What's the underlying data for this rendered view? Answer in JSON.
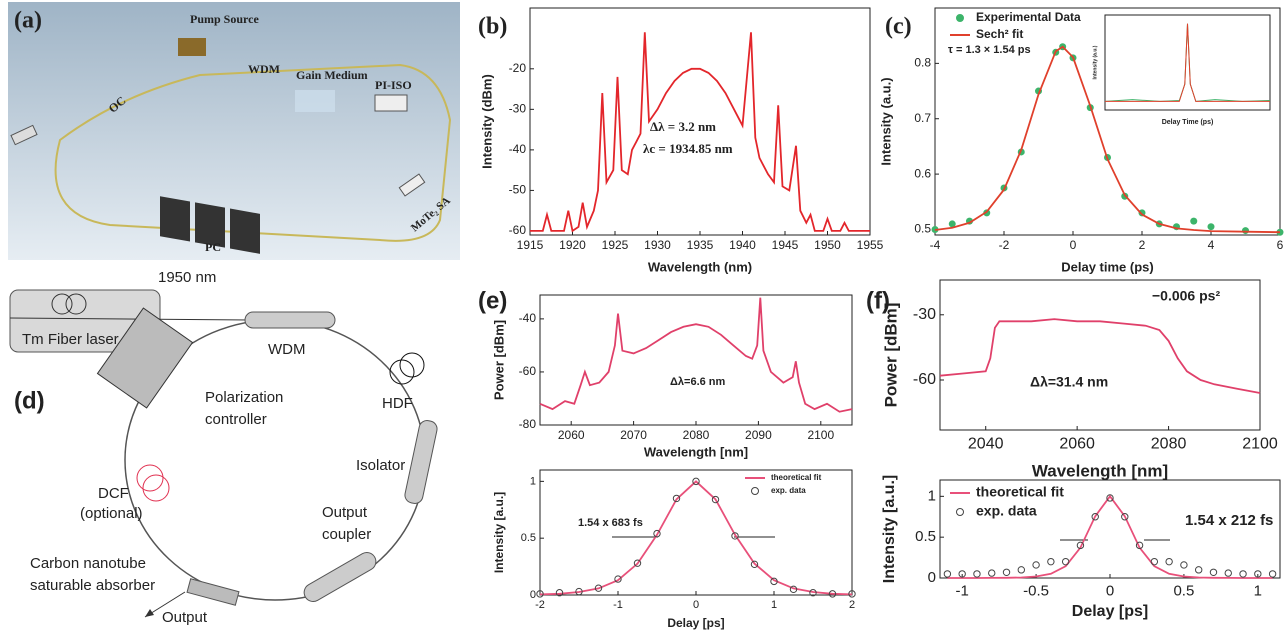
{
  "diagrams": {
    "a": {
      "label": "(a)",
      "pump": "Pump Source",
      "wdm": "WDM",
      "gain": "Gain Medium",
      "iso": "PI-ISO",
      "oc": "OC",
      "pc": "PC",
      "sa": "MoTe₂ SA"
    },
    "d": {
      "label": "(d)",
      "wavelength": "1950 nm",
      "laser": "Tm Fiber laser",
      "wdm": "WDM",
      "hdf": "HDF",
      "pol": [
        "Polarization",
        "controller"
      ],
      "isolator": "Isolator",
      "dcf": [
        "DCF",
        "(optional)"
      ],
      "coupler": [
        "Output",
        "coupler"
      ],
      "sa": [
        "Carbon nanotube",
        "saturable absorber"
      ],
      "output": "Output"
    }
  },
  "chart_data": [
    {
      "type": "line",
      "panel_label": "(b)",
      "x_label": "Wavelength (nm)",
      "y_label": "Intensity (dBm)",
      "x": [
        1915,
        1916.5,
        1917,
        1917.5,
        1919,
        1919.5,
        1920,
        1920.7,
        1921.2,
        1921.7,
        1922.5,
        1923,
        1923.5,
        1924,
        1924.8,
        1925.3,
        1925.8,
        1926.5,
        1927,
        1927.5,
        1928,
        1928.5,
        1929,
        1930,
        1931,
        1932,
        1933,
        1934,
        1935,
        1936,
        1937,
        1938,
        1939,
        1940,
        1941,
        1941.5,
        1942,
        1943,
        1943.7,
        1944.2,
        1944.7,
        1945.5,
        1946.3,
        1946.8,
        1947.5,
        1948,
        1948.5,
        1949.5,
        1950,
        1950.5,
        1951.5,
        1952,
        1952.5,
        1955
      ],
      "series": [
        {
          "color": "#e3262b",
          "style": "line",
          "values": [
            -60,
            -60,
            -56,
            -60,
            -60,
            -55,
            -60,
            -59,
            -53,
            -59,
            -55,
            -50,
            -26,
            -48,
            -45,
            -22,
            -45,
            -46,
            -40,
            -38,
            -36,
            -11,
            -33,
            -30,
            -26,
            -23,
            -21,
            -20,
            -20,
            -21,
            -23,
            -26,
            -30,
            -34,
            -11,
            -37,
            -42,
            -46,
            -48,
            -29,
            -49,
            -50,
            -39,
            -55,
            -58,
            -56,
            -60,
            -60,
            -57,
            -60,
            -60,
            -58,
            -60,
            -60
          ]
        }
      ],
      "xlim": [
        1915,
        1955
      ],
      "ylim": [
        -61,
        -5
      ],
      "xticks": [
        1915,
        1920,
        1925,
        1930,
        1935,
        1940,
        1945,
        1950,
        1955
      ],
      "yticks": [
        -60,
        -50,
        -40,
        -30,
        -20
      ],
      "annotations": [
        "Δλ = 3.2 nm",
        "λc = 1934.85 nm"
      ]
    },
    {
      "type": "line",
      "panel_label": "(c)",
      "x_label": "Delay time (ps)",
      "y_label": "Intensity (a.u.)",
      "x": [
        -4,
        -3.5,
        -3,
        -2.5,
        -2,
        -1.5,
        -1,
        -0.5,
        -0.3,
        0,
        0.5,
        1,
        1.5,
        2,
        2.5,
        3,
        3.5,
        4,
        5,
        6
      ],
      "series": [
        {
          "name": "Experimental Data",
          "color": "#3cb46a",
          "style": "markers",
          "values": [
            0.5,
            0.51,
            0.515,
            0.53,
            0.575,
            0.64,
            0.75,
            0.82,
            0.83,
            0.81,
            0.72,
            0.63,
            0.56,
            0.53,
            0.51,
            0.505,
            0.515,
            0.505,
            0.498,
            0.495
          ]
        },
        {
          "name": "Sech² fit",
          "color": "#e0402c",
          "style": "line",
          "values": [
            0.499,
            0.503,
            0.512,
            0.532,
            0.572,
            0.644,
            0.744,
            0.822,
            0.83,
            0.811,
            0.723,
            0.627,
            0.562,
            0.527,
            0.51,
            0.502,
            0.499,
            0.497,
            0.496,
            0.495
          ]
        }
      ],
      "xlim": [
        -4,
        6
      ],
      "ylim": [
        0.49,
        0.9
      ],
      "xticks": [
        -4,
        -2,
        0,
        2,
        4,
        6
      ],
      "yticks": [
        0.5,
        0.6,
        0.7,
        0.8
      ],
      "annotations": [
        "τ = 1.3 × 1.54 ps"
      ]
    },
    {
      "type": "line",
      "x_label": "Delay Time (ps)",
      "y_label": "Intensity (a.u.)",
      "x": [
        -30,
        -20,
        -10,
        -3,
        -1,
        0,
        1,
        3,
        10,
        20,
        30
      ],
      "series": [
        {
          "color": "#3cb46a",
          "style": "line",
          "values": [
            0.1,
            0.12,
            0.1,
            0.11,
            0.3,
            1,
            0.3,
            0.1,
            0.12,
            0.1,
            0.11
          ]
        },
        {
          "color": "#e0402c",
          "style": "line",
          "values": [
            0.1,
            0.1,
            0.1,
            0.1,
            0.3,
            1,
            0.3,
            0.1,
            0.1,
            0.1,
            0.1
          ]
        }
      ],
      "xlim": [
        -30,
        30
      ],
      "ylim": [
        0,
        1.1
      ]
    },
    {
      "type": "line",
      "panel_label": "(e)",
      "x_label": "Wavelength [nm]",
      "y_label": "Power [dBm]",
      "x": [
        2055,
        2057,
        2059,
        2060.5,
        2061.5,
        2062.2,
        2063,
        2064.5,
        2066,
        2067,
        2067.5,
        2068.2,
        2070,
        2072,
        2074,
        2076,
        2078,
        2080,
        2082,
        2084,
        2086,
        2088,
        2089,
        2089.8,
        2090.3,
        2090.8,
        2092,
        2094,
        2095.5,
        2096,
        2096.5,
        2097.5,
        2099,
        2101,
        2103,
        2105
      ],
      "series": [
        {
          "color": "#e0406a",
          "style": "line",
          "values": [
            -72,
            -74,
            -71,
            -72,
            -65,
            -60,
            -65,
            -64,
            -60,
            -50,
            -38,
            -52,
            -53,
            -51,
            -48,
            -45,
            -43,
            -42,
            -43,
            -46,
            -50,
            -54,
            -55,
            -50,
            -32,
            -52,
            -60,
            -64,
            -62,
            -56,
            -64,
            -72,
            -74,
            -72,
            -75,
            -74
          ]
        }
      ],
      "xlim": [
        2055,
        2105
      ],
      "ylim": [
        -80,
        -31
      ],
      "xticks": [
        2060,
        2070,
        2080,
        2090,
        2100
      ],
      "yticks": [
        -80,
        -60,
        -40
      ],
      "annotations": [
        "Δλ=6.6 nm"
      ]
    },
    {
      "type": "line",
      "x_label": "Delay [ps]",
      "y_label": "Intensity [a.u.]",
      "x": [
        -2,
        -1.75,
        -1.5,
        -1.25,
        -1,
        -0.75,
        -0.5,
        -0.25,
        0,
        0.25,
        0.5,
        0.75,
        1,
        1.25,
        1.5,
        1.75,
        2
      ],
      "series": [
        {
          "name": "theoretical fit",
          "color": "#e8507a",
          "style": "line",
          "values": [
            0.005,
            0.011,
            0.026,
            0.058,
            0.13,
            0.276,
            0.53,
            0.842,
            1,
            0.842,
            0.53,
            0.276,
            0.13,
            0.058,
            0.026,
            0.011,
            0.005
          ]
        },
        {
          "name": "exp. data",
          "color": "#444444",
          "style": "markers",
          "values": [
            0.01,
            0.02,
            0.03,
            0.06,
            0.14,
            0.28,
            0.54,
            0.85,
            1,
            0.84,
            0.52,
            0.27,
            0.12,
            0.05,
            0.02,
            0.01,
            0.01
          ]
        }
      ],
      "xlim": [
        -2,
        2
      ],
      "ylim": [
        0,
        1.1
      ],
      "xticks": [
        -2,
        -1,
        0,
        1,
        2
      ],
      "yticks": [
        0,
        0.5,
        1
      ],
      "annotations": [
        "1.54 x 683 fs"
      ]
    },
    {
      "type": "line",
      "panel_label": "(f)",
      "x_label": "Wavelength [nm]",
      "y_label": "Power [dBm]",
      "x": [
        2030,
        2035,
        2040,
        2041,
        2042,
        2043,
        2050,
        2055,
        2060,
        2065,
        2070,
        2075,
        2078,
        2080,
        2082,
        2084,
        2087,
        2090,
        2095,
        2100
      ],
      "series": [
        {
          "color": "#e0406a",
          "style": "line",
          "values": [
            -58,
            -57,
            -56,
            -50,
            -36,
            -33,
            -33,
            -32,
            -33,
            -33,
            -34,
            -35,
            -37,
            -42,
            -50,
            -56,
            -60,
            -62,
            -64,
            -66
          ]
        }
      ],
      "xlim": [
        2030,
        2100
      ],
      "ylim": [
        -83,
        -14
      ],
      "xticks": [
        2040,
        2060,
        2080,
        2100
      ],
      "yticks": [
        -60,
        -30
      ],
      "annotations": [
        "Δλ=31.4 nm",
        "−0.006 ps²"
      ]
    },
    {
      "type": "line",
      "x_label": "Delay [ps]",
      "y_label": "Intensity [a.u.]",
      "x": [
        -1.1,
        -1,
        -0.9,
        -0.8,
        -0.7,
        -0.6,
        -0.5,
        -0.4,
        -0.3,
        -0.2,
        -0.1,
        0,
        0.1,
        0.2,
        0.3,
        0.4,
        0.5,
        0.6,
        0.7,
        0.8,
        0.9,
        1,
        1.1
      ],
      "series": [
        {
          "name": "theoretical fit",
          "color": "#e8507a",
          "style": "line",
          "values": [
            0,
            0,
            0,
            0.001,
            0.002,
            0.006,
            0.018,
            0.051,
            0.145,
            0.371,
            0.756,
            1,
            0.756,
            0.371,
            0.145,
            0.051,
            0.018,
            0.006,
            0.002,
            0.001,
            0,
            0,
            0
          ]
        },
        {
          "name": "exp. data",
          "color": "#444444",
          "style": "markers",
          "values": [
            0.05,
            0.05,
            0.05,
            0.06,
            0.07,
            0.1,
            0.16,
            0.2,
            0.2,
            0.4,
            0.75,
            0.98,
            0.75,
            0.4,
            0.2,
            0.2,
            0.16,
            0.1,
            0.07,
            0.06,
            0.05,
            0.05,
            0.05
          ]
        }
      ],
      "xlim": [
        -1.15,
        1.15
      ],
      "ylim": [
        0,
        1.2
      ],
      "xticks": [
        -1,
        -0.5,
        0,
        0.5,
        1
      ],
      "yticks": [
        0,
        0.5,
        1
      ],
      "annotations": [
        "1.54 x 212 fs"
      ]
    }
  ]
}
